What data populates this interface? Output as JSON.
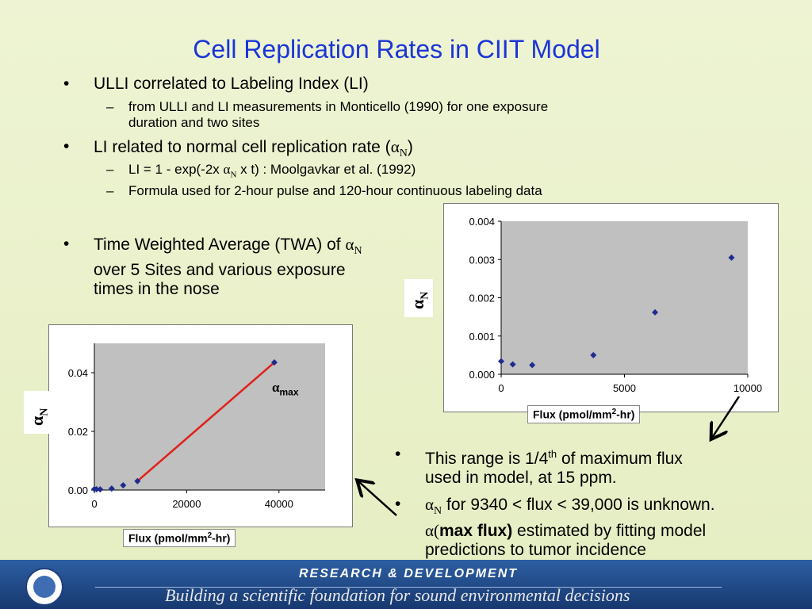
{
  "slide": {
    "title": "Cell Replication Rates in CIIT Model",
    "bullets": {
      "b1": "ULLI correlated to Labeling Index (LI)",
      "b1_sub1_line1": "from ULLI and LI measurements in Monticello (1990) for one exposure",
      "b1_sub1_line2": "duration and two sites",
      "b2_prefix": "LI related to normal cell replication rate (",
      "b2_suffix": ")",
      "b2_sub1_prefix": "LI = 1 - exp(-2x",
      "b2_sub1_suffix": "x t)  : Moolgavkar et al. (1992)",
      "b2_sub2": "Formula used for 2-hour pulse and 120-hour continuous labeling data",
      "b3_line1_prefix": "Time Weighted Average (TWA) of",
      "b3_line2": "over 5 Sites and various exposure",
      "b3_line3": "times in the nose",
      "b4_line1_a": "This range is 1/4",
      "b4_line1_sup": "th",
      "b4_line1_b": "of maximum flux",
      "b4_line2": "used in model, at 15 ppm.",
      "b5_line1": "for 9340 < flux < 39,000 is unknown.",
      "b5_line2_bold": "max flux)",
      "b5_line2_rest": "estimated by fitting model",
      "b5_line3": "predictions to tumor incidence",
      "bullet_char": "•",
      "dash_char": "–"
    },
    "greek": {
      "alpha": "α",
      "N": "N",
      "alpha_paren": "α("
    }
  },
  "chart_data": [
    {
      "type": "scatter",
      "xlabel_main": "Flux (pmol/mm",
      "xlabel_sup": "2",
      "xlabel_end": "-hr)",
      "ylabel": "α",
      "ylabel_sub": "N",
      "xlim": [
        0,
        10000
      ],
      "ylim": [
        0,
        0.004
      ],
      "xticks": [
        "0",
        "5000",
        "10000"
      ],
      "yticks": [
        "0.000",
        "0.001",
        "0.002",
        "0.003",
        "0.004"
      ],
      "xtick_values": [
        0,
        5000,
        10000
      ],
      "ytick_values": [
        0,
        0.001,
        0.002,
        0.003,
        0.004
      ],
      "series": [
        {
          "x": [
            0,
            470,
            1260,
            3740,
            6240,
            9340
          ],
          "y": [
            0.00034,
            0.00026,
            0.00024,
            0.0005,
            0.00162,
            0.00305
          ]
        }
      ],
      "marker_color": "#1f2b8f"
    },
    {
      "type": "scatter",
      "xlabel_main": "Flux (pmol/mm",
      "xlabel_sup": "2",
      "xlabel_end": "-hr)",
      "ylabel": "α",
      "ylabel_sub": "N",
      "xlim": [
        0,
        50000
      ],
      "ylim": [
        0,
        0.05
      ],
      "xticks": [
        "0",
        "20000",
        "40000"
      ],
      "yticks": [
        "0.00",
        "0.02",
        "0.04"
      ],
      "xtick_values": [
        0,
        20000,
        40000
      ],
      "ytick_values": [
        0,
        0.02,
        0.04
      ],
      "series": [
        {
          "x": [
            0,
            470,
            1260,
            3740,
            6240,
            9340,
            39000
          ],
          "y": [
            0.00034,
            0.00026,
            0.00024,
            0.0005,
            0.00162,
            0.00305,
            0.0435
          ]
        }
      ],
      "fit_line": {
        "x": [
          9340,
          39000
        ],
        "y": [
          0.00305,
          0.0435
        ],
        "color": "#e0201a"
      },
      "annotation": {
        "text": "α",
        "sub": "max"
      },
      "marker_color": "#1f2b8f"
    }
  ],
  "footer": {
    "line1": "RESEARCH &  DEVELOPMENT",
    "line2": "Building a scientific foundation for sound environmental decisions"
  }
}
